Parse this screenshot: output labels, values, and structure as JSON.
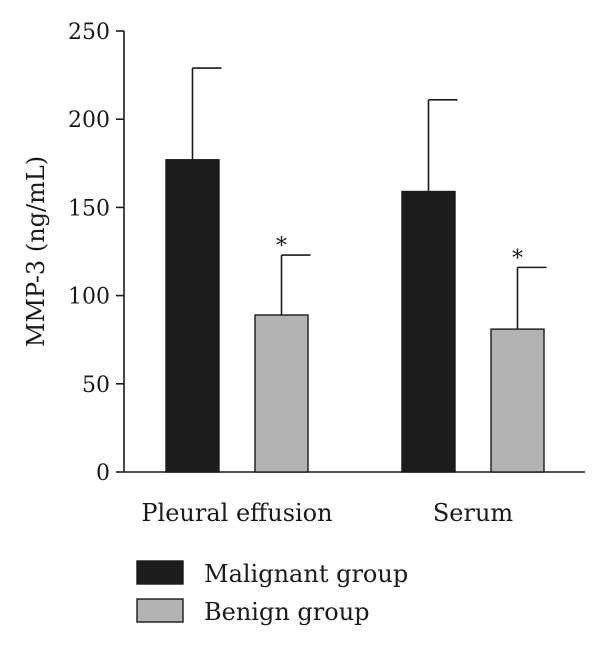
{
  "chart_data": {
    "type": "bar",
    "ylabel": "MMP-3 (ng/mL)",
    "ylim": [
      0,
      250
    ],
    "yticks": [
      0,
      50,
      100,
      150,
      200,
      250
    ],
    "categories": [
      "Pleural effusion",
      "Serum"
    ],
    "series": [
      {
        "name": "Malignant group",
        "color": "#1c1c1c",
        "values": [
          177,
          159
        ],
        "errors": [
          52,
          52
        ],
        "annotations": [
          "",
          ""
        ]
      },
      {
        "name": "Benign group",
        "color": "#b3b3b3",
        "values": [
          89,
          81
        ],
        "errors": [
          34,
          35
        ],
        "annotations": [
          "*",
          "*"
        ]
      }
    ],
    "legend_position": "bottom-left",
    "grid": false
  }
}
